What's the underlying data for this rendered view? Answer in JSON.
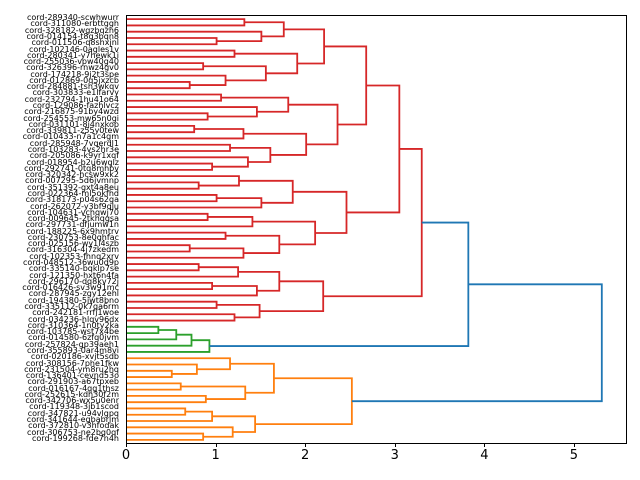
{
  "figure": {
    "background": "#ffffff",
    "frame_color": "#000000"
  },
  "chart_data": {
    "type": "dendrogram",
    "title": "",
    "xlabel": "",
    "ylabel": "",
    "orientation": "left",
    "grid": false,
    "legend": null,
    "n_leaves": 68,
    "xlim": [
      0,
      5.57
    ],
    "x_ticks": [
      0,
      1,
      2,
      3,
      4,
      5
    ],
    "link_colors": {
      "r": "#d62728",
      "g": "#2ca02c",
      "o": "#ff7f0e",
      "b": "#1f77b4"
    },
    "clusters": {
      "red": {
        "n_leaves": 49,
        "root_height": 3.29
      },
      "green": {
        "n_leaves": 5,
        "root_height": 0.92
      },
      "orange": {
        "n_leaves": 14,
        "root_height": 2.51
      },
      "red_green_merge_height": 3.81,
      "root_merge_height": 5.3
    },
    "leaf_labels": [
      "cord-289340-scwhwurr",
      "cord-311080-erbttggh",
      "cord-328182-wgzbqzh6",
      "cord-014154-t8g3bqn8",
      "cord-011506-q8shxjnl",
      "cord-102146-0agles1v",
      "cord-280341-y7hewk1i",
      "cord-255036-vpw40g40",
      "cord-326396-rnwz4gv0",
      "cord-174218-9j2t3spe",
      "cord-012869-0q5jxzcb",
      "cord-284881-tsh3wkqv",
      "cord-303833-e1lfarvy",
      "cord-232794-1hu41o64",
      "cord-129086-fazhlvcz",
      "cord-216875-91by4wzd",
      "cord-254553-mw65n0gi",
      "cord-031101-8j4nxkop",
      "cord-339811-z55y0tew",
      "cord-010433-n7a1c4gm",
      "cord-285948-7vqerdl1",
      "cord-103283-4vs2hr3e",
      "cord-205086-k9yr1xqf",
      "cord-018954-b2u6wqlz",
      "cord-292741-0tq8mhbv",
      "cord-320342-hcsw9xk2",
      "cord-007295-5d6jvmnp",
      "cord-351392-gxt4a8eu",
      "cord-022364-ml5okfhd",
      "cord-318173-p04s62ga",
      "cord-262072-y3bf9qlu",
      "cord-104631-vchqwj70",
      "cord-009645-2tkhqgsa",
      "cord-297731-dfjumw1n",
      "cord-188225-6x9hmtrv",
      "cord-230753-8e0qhfac",
      "cord-025156-wy1l4szb",
      "cord-316304-4j7zkedm",
      "cord-102353-fhnq2xrv",
      "cord-048512-36wu0d9p",
      "cord-335140-bqklp7se",
      "cord-121350-hxt6n4fa",
      "cord-296170-dq8kv72j",
      "cord-016426-sv3w91mc",
      "cord-287945-zgy12ehl",
      "cord-194380-5jwt8bno",
      "cord-335112-0k7qa6rm",
      "cord-242181-rrfj1woe",
      "cord-034236-hlqv96dx",
      "cord-310364-1n0ty2ka",
      "cord-103785-wst7x4be",
      "cord-014580-6zfq0jvm",
      "cord-257824-gp39aeh1",
      "cord-355893-0ar4m8vi",
      "cord-020186-xvjt5sdb",
      "cord-308156-7phe1fkw",
      "cord-231504-ym8ru2hq",
      "cord-136401-cevnd53o",
      "cord-291903-a67tpxeb",
      "cord-016167-4qg1thsz",
      "cord-252615-kdh30f2m",
      "cord-342706-wx5u0enr",
      "cord-119348-3jb1scod",
      "cord-347821-u94vlgpq",
      "cord-341644-egbabrjm",
      "cord-372810-v3hfodak",
      "cord-306753-ne2bg0qf",
      "cord-199268-fde7n4h"
    ],
    "tree": [
      5.3,
      "b",
      [
        3.81,
        "b",
        [
          3.29,
          "r",
          [
            3.04,
            "r",
            [
              2.67,
              "r",
              [
                2.2,
                "r",
                [
                  1.75,
                  "r",
                  [
                    1.31,
                    "r",
                    0,
                    1
                  ],
                  [
                    1.5,
                    "r",
                    2,
                    [
                      1.0,
                      "r",
                      3,
                      4
                    ]
                  ]
                ],
                [
                  1.9,
                  "r",
                  [
                    1.2,
                    "r",
                    5,
                    6
                  ],
                  [
                    1.55,
                    "r",
                    [
                      0.85,
                      "r",
                      7,
                      8
                    ],
                    [
                      1.1,
                      "r",
                      9,
                      [
                        0.7,
                        "r",
                        10,
                        11
                      ]
                    ]
                  ]
                ]
              ],
              [
                2.35,
                "r",
                [
                  1.8,
                  "r",
                  [
                    1.05,
                    "r",
                    12,
                    13
                  ],
                  [
                    1.45,
                    "r",
                    14,
                    [
                      0.9,
                      "r",
                      15,
                      16
                    ]
                  ]
                ],
                [
                  2.0,
                  "r",
                  [
                    1.3,
                    "r",
                    [
                      0.75,
                      "r",
                      17,
                      18
                    ],
                    19
                  ],
                  [
                    1.6,
                    "r",
                    [
                      1.15,
                      "r",
                      20,
                      21
                    ],
                    [
                      1.35,
                      "r",
                      22,
                      [
                        0.95,
                        "r",
                        23,
                        24
                      ]
                    ]
                  ]
                ]
              ]
            ],
            [
              2.45,
              "r",
              [
                1.85,
                "r",
                [
                  1.25,
                  "r",
                  25,
                  [
                    0.8,
                    "r",
                    26,
                    27
                  ]
                ],
                [
                  1.5,
                  "r",
                  [
                    1.0,
                    "r",
                    28,
                    29
                  ],
                  30
                ]
              ],
              [
                2.1,
                "r",
                [
                  1.4,
                  "r",
                  [
                    0.9,
                    "r",
                    31,
                    32
                  ],
                  33
                ],
                [
                  1.7,
                  "r",
                  [
                    1.1,
                    "r",
                    34,
                    35
                  ],
                  [
                    1.3,
                    "r",
                    [
                      0.7,
                      "r",
                      36,
                      37
                    ],
                    38
                  ]
                ]
              ]
            ]
          ],
          [
            2.19,
            "r",
            [
              1.7,
              "r",
              [
                1.24,
                "r",
                [
                  0.8,
                  "r",
                  39,
                  40
                ],
                41
              ],
              [
                1.45,
                "r",
                [
                  0.95,
                  "r",
                  42,
                  43
                ],
                44
              ]
            ],
            [
              1.48,
              "r",
              [
                1.0,
                "r",
                45,
                46
              ],
              [
                1.2,
                "r",
                47,
                48
              ]
            ]
          ]
        ],
        [
          0.92,
          "g",
          [
            0.72,
            "g",
            [
              0.55,
              "g",
              [
                0.35,
                "g",
                49,
                50
              ],
              51
            ],
            52
          ],
          53
        ]
      ],
      [
        2.51,
        "o",
        [
          1.64,
          "o",
          [
            1.15,
            "o",
            54,
            [
              0.78,
              "o",
              55,
              [
                0.5,
                "o",
                56,
                57
              ]
            ]
          ],
          [
            1.32,
            "o",
            [
              0.6,
              "o",
              58,
              59
            ],
            [
              0.88,
              "o",
              60,
              61
            ]
          ]
        ],
        [
          1.43,
          "o",
          [
            0.95,
            "o",
            [
              0.65,
              "o",
              62,
              63
            ],
            64
          ],
          [
            1.18,
            "o",
            65,
            [
              0.85,
              "o",
              66,
              67
            ]
          ]
        ]
      ]
    ]
  }
}
